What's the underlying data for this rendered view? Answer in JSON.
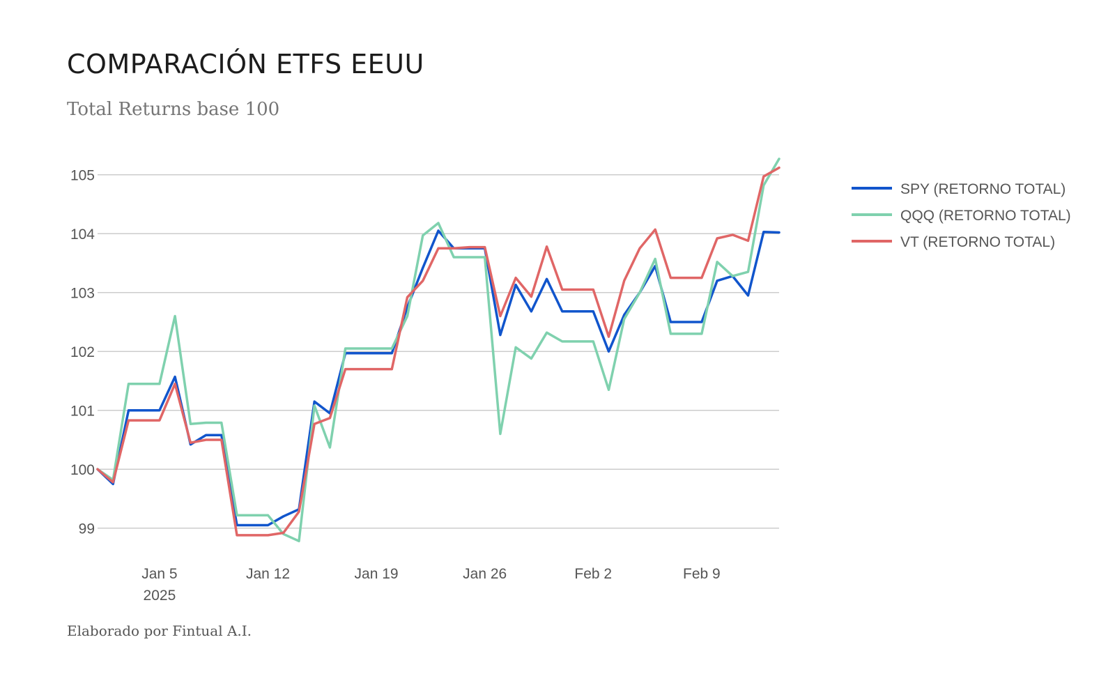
{
  "title": "COMPARACIÓN ETFS EEUU",
  "subtitle": "Total Returns base 100",
  "footer": "Elaborado por Fintual A.I.",
  "chart_data": {
    "type": "line",
    "title": "COMPARACIÓN ETFS EEUU",
    "subtitle": "Total Returns base 100",
    "xlabel": "",
    "ylabel": "",
    "ylim": [
      98.5,
      105.6
    ],
    "y_ticks": [
      99,
      100,
      101,
      102,
      103,
      104,
      105
    ],
    "grid": true,
    "legend_position": "right",
    "x_ticks": [
      {
        "date": "2025-01-05",
        "label": "Jan 5",
        "sublabel": "2025"
      },
      {
        "date": "2025-01-12",
        "label": "Jan 12",
        "sublabel": ""
      },
      {
        "date": "2025-01-19",
        "label": "Jan 19",
        "sublabel": ""
      },
      {
        "date": "2025-01-26",
        "label": "Jan 26",
        "sublabel": ""
      },
      {
        "date": "2025-02-02",
        "label": "Feb 2",
        "sublabel": ""
      },
      {
        "date": "2025-02-09",
        "label": "Feb 9",
        "sublabel": ""
      }
    ],
    "x": [
      "2025-01-01",
      "2025-01-02",
      "2025-01-03",
      "2025-01-04",
      "2025-01-05",
      "2025-01-06",
      "2025-01-07",
      "2025-01-08",
      "2025-01-09",
      "2025-01-10",
      "2025-01-11",
      "2025-01-12",
      "2025-01-13",
      "2025-01-14",
      "2025-01-15",
      "2025-01-16",
      "2025-01-17",
      "2025-01-18",
      "2025-01-19",
      "2025-01-20",
      "2025-01-21",
      "2025-01-22",
      "2025-01-23",
      "2025-01-24",
      "2025-01-25",
      "2025-01-26",
      "2025-01-27",
      "2025-01-28",
      "2025-01-29",
      "2025-01-30",
      "2025-01-31",
      "2025-02-01",
      "2025-02-02",
      "2025-02-03",
      "2025-02-04",
      "2025-02-05",
      "2025-02-06",
      "2025-02-07",
      "2025-02-08",
      "2025-02-09",
      "2025-02-10",
      "2025-02-11",
      "2025-02-12",
      "2025-02-13",
      "2025-02-14"
    ],
    "series": [
      {
        "name": "SPY (RETORNO TOTAL)",
        "color": "#1155cc",
        "values": [
          100.0,
          99.75,
          101.0,
          101.0,
          101.0,
          101.57,
          100.42,
          100.58,
          100.58,
          99.05,
          99.05,
          99.05,
          99.2,
          99.32,
          101.15,
          100.95,
          101.97,
          101.97,
          101.97,
          101.97,
          102.75,
          103.42,
          104.05,
          103.75,
          103.75,
          103.75,
          102.28,
          103.13,
          102.68,
          103.23,
          102.68,
          102.68,
          102.68,
          102.0,
          102.62,
          103.0,
          103.45,
          102.5,
          102.5,
          102.5,
          103.2,
          103.28,
          102.95,
          104.03,
          104.02
        ]
      },
      {
        "name": "QQQ (RETORNO TOTAL)",
        "color": "#7fd1ae",
        "values": [
          100.0,
          99.82,
          101.45,
          101.45,
          101.45,
          102.6,
          100.77,
          100.79,
          100.79,
          99.22,
          99.22,
          99.22,
          98.9,
          98.78,
          101.08,
          100.37,
          102.05,
          102.05,
          102.05,
          102.05,
          102.6,
          103.97,
          104.18,
          103.6,
          103.6,
          103.6,
          100.6,
          102.07,
          101.88,
          102.32,
          102.17,
          102.17,
          102.17,
          101.35,
          102.55,
          103.0,
          103.57,
          102.3,
          102.3,
          102.3,
          103.52,
          103.28,
          103.35,
          104.82,
          105.27
        ]
      },
      {
        "name": "VT (RETORNO TOTAL)",
        "color": "#e06666",
        "values": [
          100.0,
          99.78,
          100.83,
          100.83,
          100.83,
          101.45,
          100.45,
          100.5,
          100.5,
          98.88,
          98.88,
          98.88,
          98.92,
          99.28,
          100.77,
          100.87,
          101.7,
          101.7,
          101.7,
          101.7,
          102.92,
          103.2,
          103.75,
          103.75,
          103.77,
          103.77,
          102.6,
          103.25,
          102.93,
          103.78,
          103.05,
          103.05,
          103.05,
          102.25,
          103.2,
          103.75,
          104.07,
          103.25,
          103.25,
          103.25,
          103.92,
          103.98,
          103.88,
          104.97,
          105.12
        ]
      }
    ]
  }
}
